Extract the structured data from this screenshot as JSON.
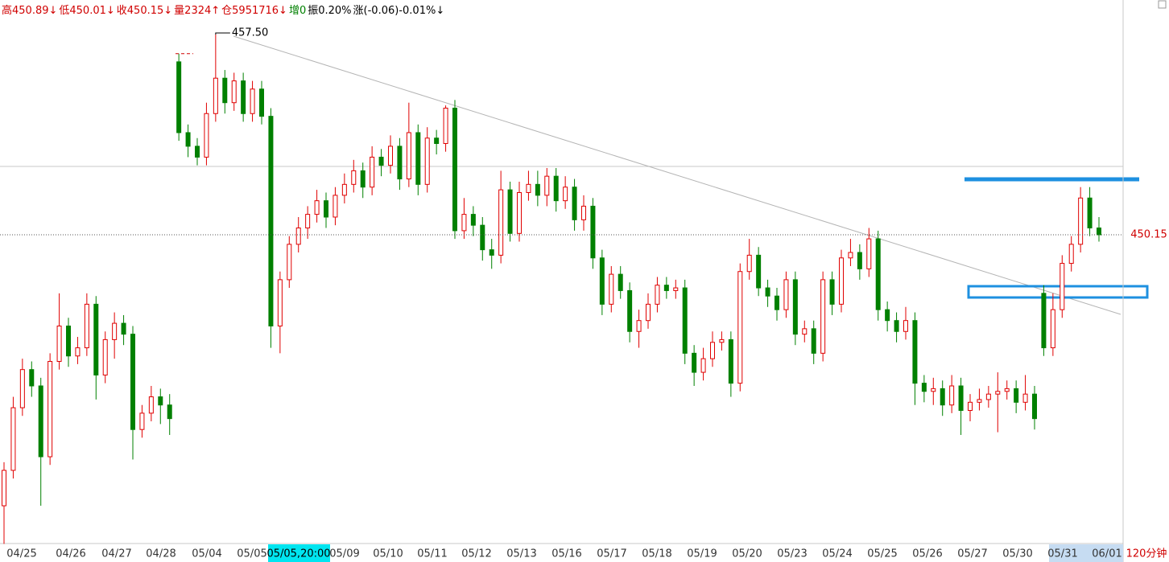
{
  "header": {
    "items": [
      "高450.89↓",
      "低450.01↓",
      "收450.15↓",
      "量2324↑",
      "仓5951716↓",
      "增0",
      "振0.20%",
      "涨(-0.06)-0.01%↓"
    ]
  },
  "chart_data": {
    "type": "candlestick",
    "up_color": "#e00000",
    "down_color": "#008000",
    "ylim": [
      439.05,
      458.77
    ],
    "high_label": {
      "value": 457.5,
      "label": "457.50"
    },
    "last_price": {
      "value": 450.15,
      "label": "450.15"
    },
    "period": "120分钟",
    "cursor_label": "05/05,20:00",
    "x_labels": [
      "04/25",
      "04/26",
      "04/27",
      "04/28",
      "05/04",
      "05/05",
      "05/09",
      "05/10",
      "05/11",
      "05/12",
      "05/13",
      "05/16",
      "05/17",
      "05/18",
      "05/19",
      "05/20",
      "05/23",
      "05/24",
      "05/25",
      "05/26",
      "05/27",
      "05/30",
      "05/31",
      "06/01"
    ],
    "open": [
      440.2,
      441.5,
      443.8,
      445.2,
      444.6,
      442.0,
      445.5,
      446.8,
      445.7,
      446.0,
      447.6,
      445.0,
      446.3,
      446.9,
      446.5,
      443.0,
      443.6,
      444.2,
      443.9,
      456.5,
      453.9,
      453.4,
      453.0,
      454.6,
      455.9,
      455.0,
      455.8,
      454.6,
      455.5,
      454.5,
      446.8,
      448.5,
      449.8,
      450.4,
      450.9,
      451.4,
      450.8,
      451.6,
      452.0,
      452.5,
      451.9,
      453.0,
      452.7,
      453.4,
      452.2,
      453.9,
      452.0,
      453.7,
      453.5,
      454.8,
      450.3,
      450.9,
      450.5,
      449.6,
      449.4,
      451.8,
      450.2,
      451.7,
      452.0,
      451.6,
      452.3,
      451.4,
      451.9,
      450.7,
      451.2,
      449.3,
      447.6,
      448.7,
      448.1,
      446.6,
      447.0,
      447.6,
      448.3,
      448.1,
      448.2,
      445.8,
      445.1,
      445.6,
      446.2,
      446.3,
      444.7,
      448.8,
      449.4,
      448.2,
      447.9,
      447.4,
      448.5,
      446.5,
      446.7,
      445.8,
      448.5,
      447.6,
      449.3,
      449.5,
      448.9,
      450.0,
      447.4,
      447.0,
      446.6,
      447.0,
      444.7,
      444.4,
      444.5,
      443.9,
      444.6,
      443.7,
      444.0,
      444.1,
      444.3,
      444.4,
      444.5,
      444.0,
      444.3,
      448.0,
      446.0,
      447.4,
      449.1,
      449.8,
      451.5,
      450.4
    ],
    "high": [
      441.8,
      444.2,
      445.6,
      445.5,
      444.9,
      445.8,
      448.0,
      447.1,
      446.4,
      448.0,
      447.9,
      446.6,
      447.3,
      447.2,
      446.8,
      443.9,
      444.6,
      444.5,
      444.3,
      456.8,
      454.2,
      453.7,
      455.0,
      457.5,
      456.2,
      456.1,
      456.1,
      455.8,
      455.8,
      454.8,
      448.8,
      450.1,
      450.8,
      451.2,
      451.8,
      451.7,
      451.9,
      452.4,
      452.9,
      452.8,
      453.4,
      453.3,
      453.8,
      453.7,
      455.0,
      454.2,
      454.1,
      454.0,
      454.9,
      455.1,
      451.5,
      451.2,
      450.8,
      450.0,
      452.5,
      452.1,
      452.1,
      452.5,
      452.5,
      452.6,
      452.6,
      452.3,
      452.2,
      451.6,
      451.5,
      449.6,
      449.0,
      449.0,
      448.4,
      447.4,
      448.0,
      448.6,
      448.6,
      448.5,
      448.5,
      446.1,
      446.0,
      446.6,
      446.6,
      446.6,
      449.1,
      450.0,
      449.7,
      448.5,
      448.2,
      448.8,
      448.8,
      447.0,
      447.0,
      448.8,
      448.8,
      449.6,
      450.0,
      449.8,
      450.4,
      450.3,
      447.7,
      447.3,
      447.5,
      447.3,
      445.0,
      444.9,
      444.8,
      445.0,
      444.9,
      444.3,
      444.5,
      444.6,
      445.1,
      444.8,
      444.8,
      445.0,
      444.6,
      448.3,
      448.0,
      449.4,
      450.1,
      451.9,
      451.9,
      450.8
    ],
    "low": [
      438.8,
      441.2,
      443.5,
      444.2,
      440.2,
      441.7,
      445.2,
      445.3,
      445.4,
      445.7,
      444.1,
      444.7,
      445.6,
      446.1,
      441.9,
      442.7,
      443.3,
      443.2,
      442.8,
      453.6,
      453.0,
      452.7,
      452.7,
      454.3,
      454.6,
      454.7,
      454.3,
      454.3,
      454.2,
      446.0,
      445.8,
      448.2,
      449.5,
      450.0,
      450.6,
      450.4,
      450.5,
      451.3,
      451.7,
      451.5,
      451.6,
      452.3,
      452.4,
      451.8,
      451.9,
      451.6,
      451.7,
      453.1,
      453.2,
      450.0,
      450.0,
      450.1,
      449.2,
      448.9,
      449.1,
      449.9,
      449.9,
      451.4,
      451.2,
      451.2,
      451.0,
      451.1,
      450.3,
      450.3,
      448.9,
      447.2,
      447.3,
      447.8,
      446.2,
      446.0,
      446.7,
      447.3,
      447.8,
      447.8,
      445.4,
      444.6,
      444.8,
      445.3,
      445.9,
      444.2,
      444.4,
      448.5,
      447.9,
      447.5,
      447.0,
      447.1,
      446.1,
      446.2,
      445.4,
      445.5,
      447.2,
      447.3,
      449.0,
      448.5,
      448.6,
      447.0,
      446.6,
      446.2,
      446.3,
      443.9,
      444.0,
      443.9,
      443.5,
      443.6,
      442.8,
      443.3,
      443.7,
      443.8,
      442.9,
      444.1,
      443.6,
      443.7,
      443.0,
      445.7,
      445.7,
      447.1,
      448.8,
      449.5,
      450.1,
      449.9
    ],
    "close": [
      441.5,
      443.8,
      445.2,
      444.6,
      442.0,
      445.5,
      446.8,
      445.7,
      446.0,
      447.6,
      445.0,
      446.3,
      446.9,
      446.5,
      443.0,
      443.6,
      444.2,
      443.9,
      443.4,
      453.9,
      453.4,
      453.0,
      454.6,
      455.9,
      455.0,
      455.8,
      454.6,
      455.5,
      454.5,
      446.8,
      448.5,
      449.8,
      450.4,
      450.9,
      451.4,
      450.8,
      451.6,
      452.0,
      452.5,
      451.9,
      453.0,
      452.7,
      453.4,
      452.2,
      453.9,
      452.0,
      453.7,
      453.5,
      454.8,
      450.3,
      450.9,
      450.5,
      449.6,
      449.4,
      451.8,
      450.2,
      451.7,
      452.0,
      451.6,
      452.3,
      451.4,
      451.9,
      450.7,
      451.2,
      449.3,
      447.6,
      448.7,
      448.1,
      446.6,
      447.0,
      447.6,
      448.3,
      448.1,
      448.2,
      445.8,
      445.1,
      445.6,
      446.2,
      446.3,
      444.7,
      448.8,
      449.4,
      448.2,
      447.9,
      447.4,
      448.5,
      446.5,
      446.7,
      445.8,
      448.5,
      447.6,
      449.3,
      449.5,
      448.9,
      450.0,
      447.4,
      447.0,
      446.6,
      447.0,
      444.7,
      444.4,
      444.5,
      443.9,
      444.6,
      443.7,
      444.0,
      444.1,
      444.3,
      444.4,
      444.5,
      444.0,
      444.3,
      443.4,
      446.0,
      447.4,
      449.1,
      449.8,
      451.5,
      450.4,
      450.15
    ]
  }
}
